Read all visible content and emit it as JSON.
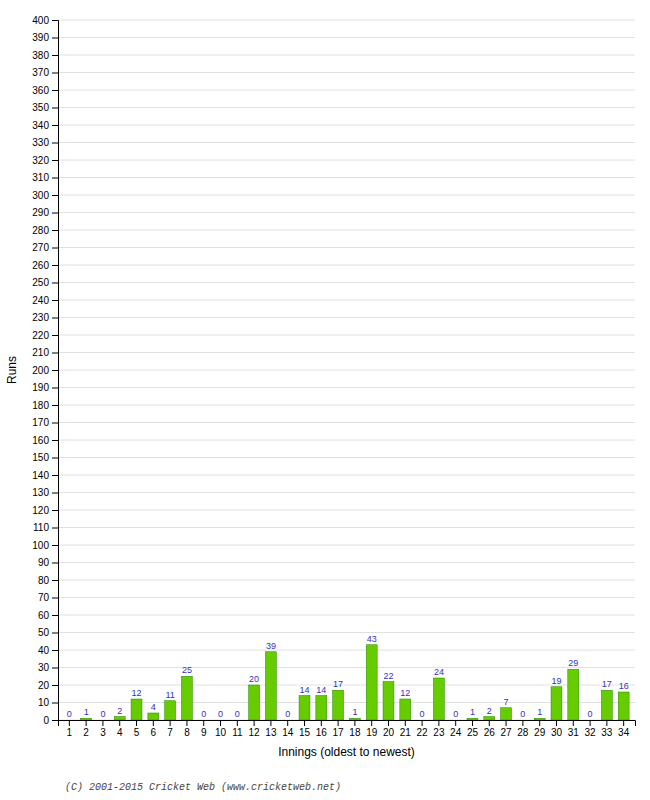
{
  "chart_data": {
    "type": "bar",
    "xlabel": "Innings (oldest to newest)",
    "ylabel": "Runs",
    "annotations": [
      "(C) 2001-2015 Cricket Web (www.cricketweb.net)"
    ],
    "categories": [
      "1",
      "2",
      "3",
      "4",
      "5",
      "6",
      "7",
      "8",
      "9",
      "10",
      "11",
      "12",
      "13",
      "14",
      "15",
      "16",
      "17",
      "18",
      "19",
      "20",
      "21",
      "22",
      "23",
      "24",
      "25",
      "26",
      "27",
      "28",
      "29",
      "30",
      "31",
      "32",
      "33",
      "34"
    ],
    "values": [
      0,
      1,
      0,
      2,
      12,
      4,
      11,
      25,
      0,
      0,
      0,
      20,
      39,
      0,
      14,
      14,
      17,
      1,
      43,
      22,
      12,
      0,
      24,
      0,
      1,
      2,
      7,
      0,
      1,
      19,
      29,
      0,
      17,
      16
    ],
    "color": "#66cc00",
    "ylim": [
      0,
      400
    ],
    "yticks": [
      0,
      10,
      20,
      30,
      40,
      50,
      60,
      70,
      80,
      90,
      100,
      110,
      120,
      130,
      140,
      150,
      160,
      170,
      180,
      190,
      200,
      210,
      220,
      230,
      240,
      250,
      260,
      270,
      280,
      290,
      300,
      310,
      320,
      330,
      340,
      350,
      360,
      370,
      380,
      390,
      400
    ],
    "grid": true,
    "data_labels": true
  }
}
